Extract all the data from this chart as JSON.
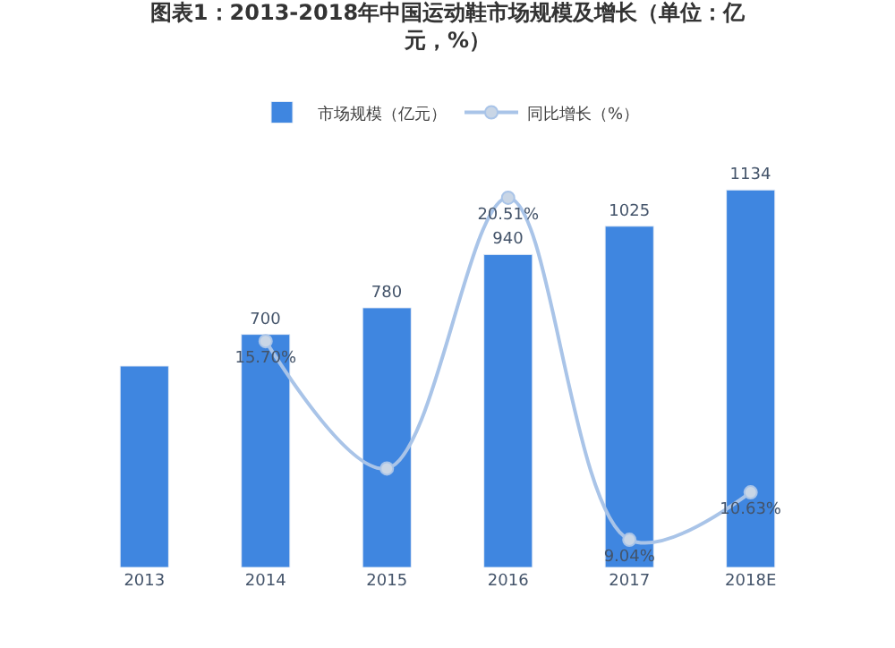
{
  "chart_data": {
    "type": "bar",
    "title": "图表1：2013-2018年中国运动鞋市场规模及增长（单位：亿元，%）",
    "categories": [
      "2013",
      "2014",
      "2015",
      "2016",
      "2017",
      "2018E"
    ],
    "series": [
      {
        "name": "市场规模（亿元）",
        "color": "#3f86e0",
        "values": [
          605,
          700,
          780,
          940,
          1025,
          1134
        ],
        "value_labels": [
          null,
          "700",
          "780",
          "940",
          "1025",
          "1134"
        ]
      },
      {
        "name": "同比增长（%）",
        "type": "line",
        "axis": "y2",
        "color": "#a9c4e8",
        "marker": "circle",
        "values": [
          null,
          15.7,
          11.43,
          20.51,
          9.04,
          10.63
        ],
        "value_labels": [
          null,
          "15.70%",
          null,
          "20.51%",
          "9.04%",
          "10.63%"
        ]
      }
    ],
    "tick_labels": "x",
    "legend": "top"
  }
}
